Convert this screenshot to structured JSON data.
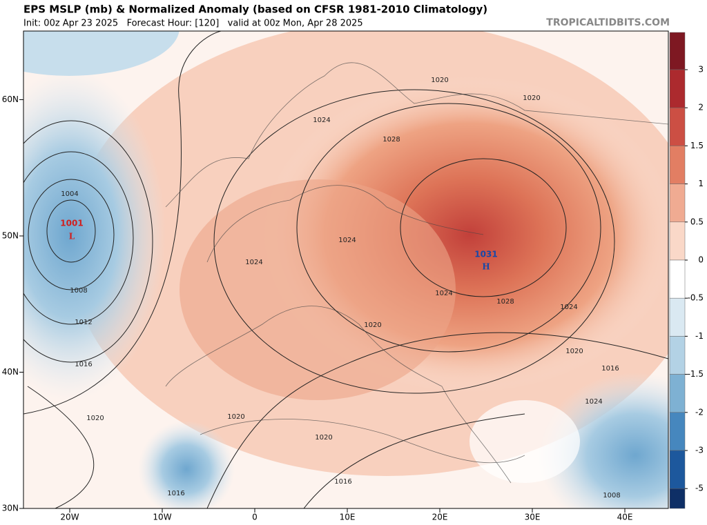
{
  "header": {
    "title": "EPS MSLP (mb) & Normalized Anomaly (based on CFSR 1981-2010 Climatology)",
    "subtitle": "Init: 00z Apr 23 2025   Forecast Hour: [120]   valid at 00z Mon, Apr 28 2025",
    "site": "TROPICALTIDBITS.COM"
  },
  "map": {
    "lat_ticks": [
      {
        "value": 60,
        "label": "60N"
      },
      {
        "value": 50,
        "label": "50N"
      },
      {
        "value": 40,
        "label": "40N"
      },
      {
        "value": 30,
        "label": "30N"
      }
    ],
    "lon_ticks": [
      {
        "value": -20,
        "label": "20W"
      },
      {
        "value": -10,
        "label": "10W"
      },
      0,
      {
        "value": 10,
        "label": "10E"
      },
      {
        "value": 20,
        "label": "20E"
      },
      {
        "value": 30,
        "label": "30E"
      },
      {
        "value": 40,
        "label": "40E"
      }
    ],
    "contour_labels": [
      1004,
      1008,
      1012,
      1016,
      1020,
      1024,
      1024,
      1024,
      1028,
      1020,
      1024,
      1028,
      1024,
      1020,
      1016,
      1020,
      1020,
      1020,
      1016,
      1016,
      1008,
      1024,
      1020
    ],
    "low": {
      "value": 1001,
      "symbol": "L"
    },
    "high": {
      "value": 1031,
      "symbol": "H"
    }
  },
  "colorbar": {
    "ticks": [
      3,
      2,
      1.5,
      1,
      0.5,
      0,
      -0.5,
      -1,
      -1.5,
      -2,
      -3,
      -5
    ],
    "colors": [
      "#7e1822",
      "#ac2a2e",
      "#cc4f44",
      "#e27e63",
      "#f0ab92",
      "#fad8c8",
      "#ffffff",
      "#dae9f2",
      "#b3d2e5",
      "#7eb1d3",
      "#4687be",
      "#1d589d",
      "#0e2f66"
    ]
  }
}
